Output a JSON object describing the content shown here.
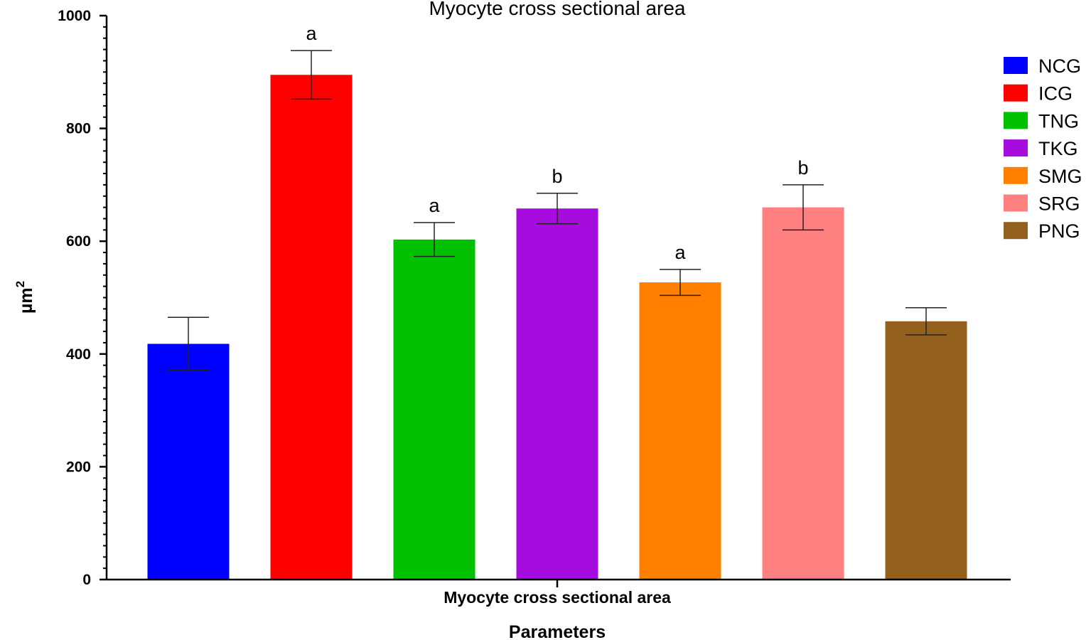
{
  "chart_data": {
    "type": "bar",
    "title": "Myocyte cross sectional area",
    "category_label": "Myocyte cross sectional area",
    "xlabel": "Parameters",
    "ylabel": "µm",
    "ylabel_superscript": "2",
    "ylim": [
      0,
      1000
    ],
    "yticks": [
      "0",
      "200",
      "400",
      "600",
      "800",
      "1000"
    ],
    "legend_position": "right",
    "series": [
      {
        "name": "NCG",
        "value": 418,
        "error": 47,
        "label": "",
        "color": "#0000FF"
      },
      {
        "name": "ICG",
        "value": 895,
        "error": 43,
        "label": "a",
        "color": "#FF0000"
      },
      {
        "name": "TNG",
        "value": 603,
        "error": 30,
        "label": "a",
        "color": "#00C000"
      },
      {
        "name": "TKG",
        "value": 658,
        "error": 27,
        "label": "b",
        "color": "#A60CDD"
      },
      {
        "name": "SMG",
        "value": 527,
        "error": 23,
        "label": "a",
        "color": "#FF8000"
      },
      {
        "name": "SRG",
        "value": 660,
        "error": 40,
        "label": "b",
        "color": "#FF8080"
      },
      {
        "name": "PNG",
        "value": 458,
        "error": 24,
        "label": "",
        "color": "#93601E"
      }
    ]
  }
}
